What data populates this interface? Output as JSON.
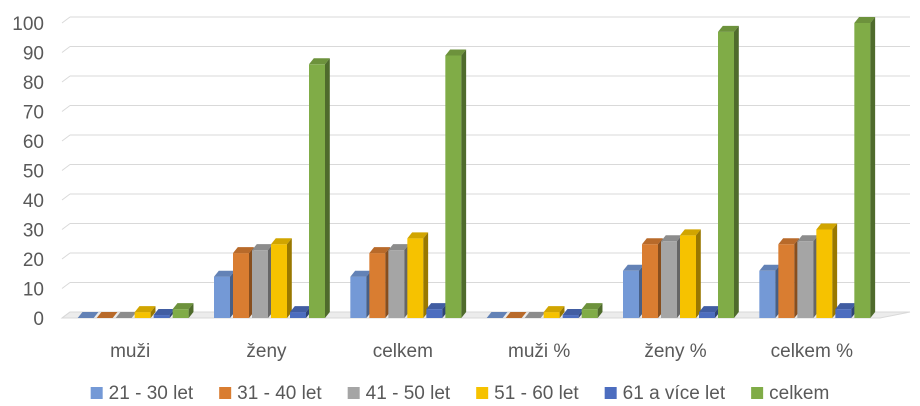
{
  "chart_data": {
    "type": "bar",
    "categories": [
      "muži",
      "ženy",
      "celkem",
      "muži %",
      "ženy %",
      "celkem %"
    ],
    "series": [
      {
        "name": "21 - 30 let",
        "color": "#7499D6",
        "values": [
          0,
          14,
          14,
          0,
          16,
          16
        ]
      },
      {
        "name": "31 - 40 let",
        "color": "#D97D31",
        "values": [
          0,
          22,
          22,
          0,
          25,
          25
        ]
      },
      {
        "name": "41 - 50 let",
        "color": "#A5A5A5",
        "values": [
          0,
          23,
          23,
          0,
          26,
          26
        ]
      },
      {
        "name": "51 - 60 let",
        "color": "#F6C200",
        "values": [
          2,
          25,
          27,
          2,
          28,
          30
        ]
      },
      {
        "name": "61 a více let",
        "color": "#4C6DBF",
        "values": [
          1,
          2,
          3,
          1,
          2,
          3
        ]
      },
      {
        "name": "celkem",
        "color": "#80AC47",
        "values": [
          3,
          86,
          89,
          3,
          97,
          100
        ]
      }
    ],
    "yticks": [
      0,
      10,
      20,
      30,
      40,
      50,
      60,
      70,
      80,
      90,
      100
    ],
    "ylim": [
      0,
      100
    ],
    "grid": true,
    "legend_position": "bottom",
    "style": "3d-clustered-column"
  }
}
